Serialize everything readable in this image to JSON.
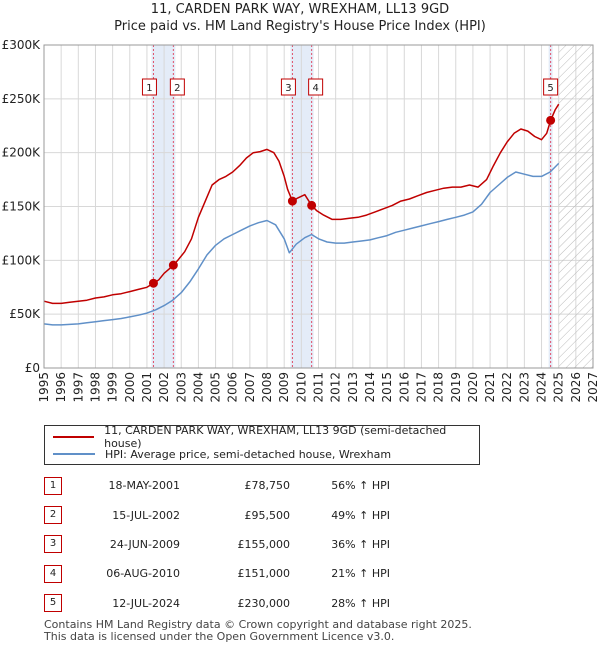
{
  "title_line1": "11, CARDEN PARK WAY, WREXHAM, LL13 9GD",
  "title_line2": "Price paid vs. HM Land Registry's House Price Index (HPI)",
  "colors": {
    "property": "#c00000",
    "hpi": "#6090c8",
    "grid": "#d8d8d8",
    "marker_line": "#e0506a",
    "band": "#e4ecf8"
  },
  "legend": {
    "property_label": "11, CARDEN PARK WAY, WREXHAM, LL13 9GD (semi-detached house)",
    "hpi_label": "HPI: Average price, semi-detached house, Wrexham"
  },
  "sales": [
    {
      "num": "1",
      "date": "18-MAY-2001",
      "price": "£78,750",
      "hpi": "56% ↑ HPI"
    },
    {
      "num": "2",
      "date": "15-JUL-2002",
      "price": "£95,500",
      "hpi": "49% ↑ HPI"
    },
    {
      "num": "3",
      "date": "24-JUN-2009",
      "price": "£155,000",
      "hpi": "36% ↑ HPI"
    },
    {
      "num": "4",
      "date": "06-AUG-2010",
      "price": "£151,000",
      "hpi": "21% ↑ HPI"
    },
    {
      "num": "5",
      "date": "12-JUL-2024",
      "price": "£230,000",
      "hpi": "28% ↑ HPI"
    }
  ],
  "footer_line1": "Contains HM Land Registry data © Crown copyright and database right 2025.",
  "footer_line2": "This data is licensed under the Open Government Licence v3.0.",
  "chart_data": {
    "type": "line",
    "xlim": [
      1995,
      2027
    ],
    "ylim": [
      0,
      300000
    ],
    "x_ticks": [
      "1995",
      "1996",
      "1997",
      "1998",
      "1999",
      "2000",
      "2001",
      "2002",
      "2003",
      "2004",
      "2005",
      "2006",
      "2007",
      "2008",
      "2009",
      "2010",
      "2011",
      "2012",
      "2013",
      "2014",
      "2015",
      "2016",
      "2017",
      "2018",
      "2019",
      "2020",
      "2021",
      "2022",
      "2023",
      "2024",
      "2025",
      "2026",
      "2027"
    ],
    "y_ticks": [
      {
        "value": 0,
        "label": "£0"
      },
      {
        "value": 50000,
        "label": "£50K"
      },
      {
        "value": 100000,
        "label": "£100K"
      },
      {
        "value": 150000,
        "label": "£150K"
      },
      {
        "value": 200000,
        "label": "£200K"
      },
      {
        "value": 250000,
        "label": "£250K"
      },
      {
        "value": 300000,
        "label": "£300K"
      }
    ],
    "grid": true,
    "forecast_from": 2025.0,
    "sale_points": [
      {
        "num": "1",
        "x": 2001.38,
        "y": 78750
      },
      {
        "num": "2",
        "x": 2002.54,
        "y": 95500
      },
      {
        "num": "3",
        "x": 2009.48,
        "y": 155000
      },
      {
        "num": "4",
        "x": 2010.6,
        "y": 151000
      },
      {
        "num": "5",
        "x": 2024.53,
        "y": 230000
      }
    ],
    "series": [
      {
        "name": "11, CARDEN PARK WAY, WREXHAM, LL13 9GD (semi-detached house)",
        "x": [
          1995.0,
          1995.5,
          1996.0,
          1996.5,
          1997.0,
          1997.5,
          1998.0,
          1998.5,
          1999.0,
          1999.5,
          2000.0,
          2000.5,
          2001.0,
          2001.38,
          2001.7,
          2002.0,
          2002.3,
          2002.54,
          2002.8,
          2003.2,
          2003.6,
          2004.0,
          2004.4,
          2004.8,
          2005.2,
          2005.6,
          2006.0,
          2006.4,
          2006.8,
          2007.2,
          2007.6,
          2008.0,
          2008.4,
          2008.7,
          2009.0,
          2009.2,
          2009.48,
          2009.8,
          2010.2,
          2010.6,
          2010.9,
          2011.3,
          2011.8,
          2012.3,
          2012.8,
          2013.3,
          2013.8,
          2014.3,
          2014.8,
          2015.3,
          2015.8,
          2016.3,
          2016.8,
          2017.3,
          2017.8,
          2018.3,
          2018.8,
          2019.3,
          2019.8,
          2020.3,
          2020.8,
          2021.2,
          2021.6,
          2022.0,
          2022.4,
          2022.8,
          2023.2,
          2023.6,
          2024.0,
          2024.3,
          2024.53,
          2024.8,
          2025.0
        ],
        "y": [
          62000,
          60000,
          60000,
          61000,
          62000,
          63000,
          65000,
          66000,
          68000,
          69000,
          71000,
          73000,
          75000,
          78750,
          82000,
          88000,
          92000,
          95500,
          100000,
          108000,
          120000,
          140000,
          155000,
          170000,
          175000,
          178000,
          182000,
          188000,
          195000,
          200000,
          201000,
          203000,
          200000,
          192000,
          178000,
          166000,
          155000,
          158000,
          161000,
          151000,
          146000,
          142000,
          138000,
          138000,
          139000,
          140000,
          142000,
          145000,
          148000,
          151000,
          155000,
          157000,
          160000,
          163000,
          165000,
          167000,
          168000,
          168000,
          170000,
          168000,
          175000,
          188000,
          200000,
          210000,
          218000,
          222000,
          220000,
          215000,
          212000,
          218000,
          230000,
          240000,
          245000
        ]
      },
      {
        "name": "HPI: Average price, semi-detached house, Wrexham",
        "x": [
          1995.0,
          1995.5,
          1996.0,
          1996.5,
          1997.0,
          1997.5,
          1998.0,
          1998.5,
          1999.0,
          1999.5,
          2000.0,
          2000.5,
          2001.0,
          2001.5,
          2002.0,
          2002.5,
          2003.0,
          2003.5,
          2004.0,
          2004.5,
          2005.0,
          2005.5,
          2006.0,
          2006.5,
          2007.0,
          2007.5,
          2008.0,
          2008.5,
          2009.0,
          2009.3,
          2009.7,
          2010.2,
          2010.6,
          2011.0,
          2011.5,
          2012.0,
          2012.5,
          2013.0,
          2013.5,
          2014.0,
          2014.5,
          2015.0,
          2015.5,
          2016.0,
          2016.5,
          2017.0,
          2017.5,
          2018.0,
          2018.5,
          2019.0,
          2019.5,
          2020.0,
          2020.5,
          2021.0,
          2021.5,
          2022.0,
          2022.5,
          2023.0,
          2023.5,
          2024.0,
          2024.5,
          2025.0
        ],
        "y": [
          41000,
          40000,
          40000,
          40500,
          41000,
          42000,
          43000,
          44000,
          45000,
          46000,
          47500,
          49000,
          51000,
          54000,
          58000,
          63000,
          70000,
          80000,
          92000,
          105000,
          114000,
          120000,
          124000,
          128000,
          132000,
          135000,
          137000,
          133000,
          120000,
          107000,
          115000,
          121000,
          124000,
          120000,
          117000,
          116000,
          116000,
          117000,
          118000,
          119000,
          121000,
          123000,
          126000,
          128000,
          130000,
          132000,
          134000,
          136000,
          138000,
          140000,
          142000,
          145000,
          152000,
          163000,
          170000,
          177000,
          182000,
          180000,
          178000,
          178000,
          182000,
          190000
        ]
      }
    ]
  }
}
